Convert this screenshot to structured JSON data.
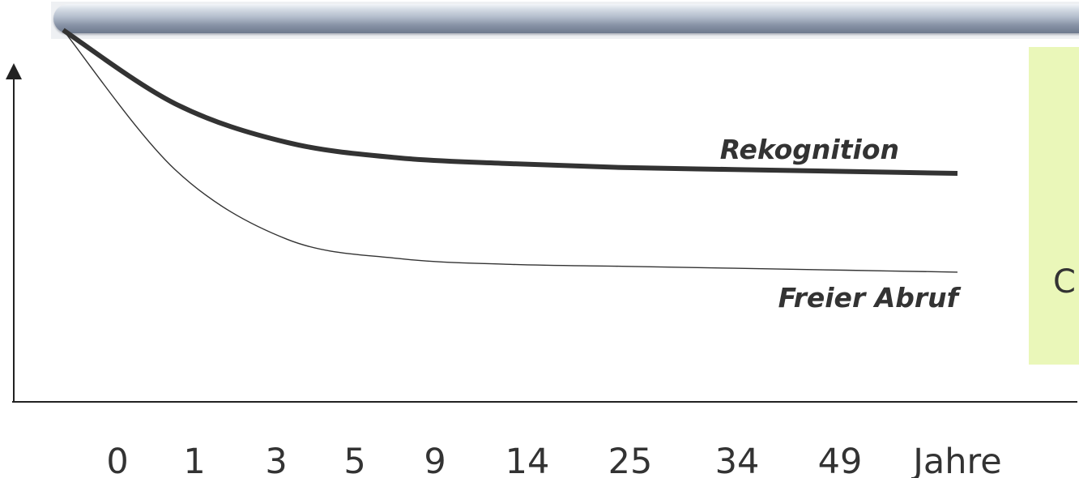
{
  "side_panel": {
    "text": "C",
    "color": "#eaf7b9"
  },
  "chart_data": {
    "type": "line",
    "categories": [
      "0",
      "1",
      "3",
      "5",
      "9",
      "14",
      "25",
      "34",
      "49",
      "Jahre"
    ],
    "x": [
      0,
      1,
      3,
      5,
      9,
      14,
      25,
      34,
      49
    ],
    "series": [
      {
        "name": "Rekognition",
        "stroke": "thick",
        "color": "#333333",
        "values": [
          96,
          77,
          67,
          63,
          61.5,
          60.5,
          60,
          59.5,
          59
        ]
      },
      {
        "name": "Freier Abruf",
        "stroke": "thin",
        "color": "#333333",
        "values": [
          96,
          60,
          42,
          37,
          35.5,
          35,
          34.5,
          34,
          33.5
        ]
      }
    ],
    "ylim": [
      0,
      100
    ],
    "grid": false,
    "legend": "inline labels at line ends"
  }
}
